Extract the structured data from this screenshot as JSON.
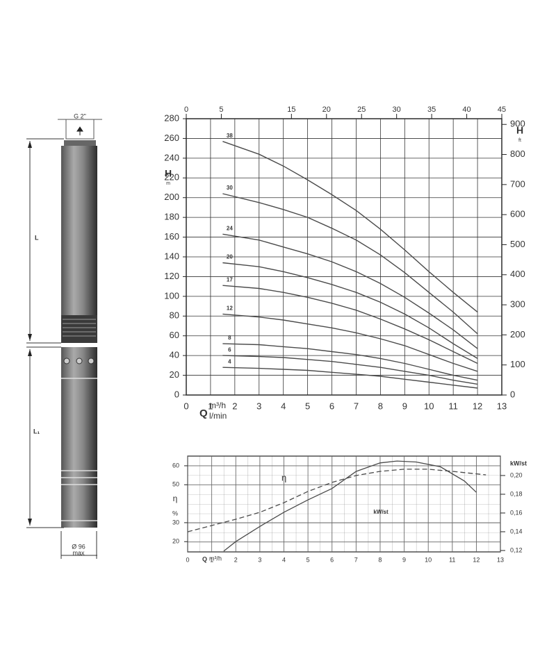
{
  "drawing": {
    "connection": "G 2\"",
    "length_upper": "L",
    "length_lower": "L₁",
    "diameter": "Ø 96",
    "diameter_note": "max"
  },
  "chart_data": [
    {
      "type": "line",
      "x_label": "Q",
      "x_unit": "m³/h",
      "x2_unit": "l/min",
      "y_label": "H",
      "y_unit": "m",
      "y2_label": "H",
      "y2_unit": "ft",
      "xlim": [
        0,
        13
      ],
      "xticks": [
        0,
        1,
        2,
        3,
        4,
        5,
        6,
        7,
        8,
        9,
        10,
        11,
        12,
        13
      ],
      "x2lim": [
        0,
        45
      ],
      "x2ticks": [
        0,
        5,
        15,
        20,
        25,
        30,
        35,
        40,
        45
      ],
      "ylim": [
        0,
        280
      ],
      "yticks": [
        0,
        20,
        40,
        60,
        80,
        100,
        120,
        140,
        160,
        180,
        200,
        220,
        240,
        260,
        280
      ],
      "y2lim": [
        0,
        919
      ],
      "y2ticks": [
        0,
        100,
        200,
        300,
        400,
        500,
        600,
        700,
        800,
        900
      ],
      "grid": true,
      "series": [
        {
          "name": "38",
          "color": "#4a4a4a",
          "x": [
            1.5,
            3,
            4,
            5,
            6,
            7,
            8,
            9,
            10,
            11,
            12
          ],
          "values": [
            257,
            244,
            232,
            218,
            203,
            187,
            168,
            147,
            125,
            104,
            84
          ]
        },
        {
          "name": "30",
          "color": "#4a4a4a",
          "x": [
            1.5,
            3,
            4,
            5,
            6,
            7,
            8,
            9,
            10,
            11,
            12
          ],
          "values": [
            204,
            195,
            188,
            180,
            169,
            157,
            142,
            124,
            104,
            84,
            62
          ]
        },
        {
          "name": "24",
          "color": "#4a4a4a",
          "x": [
            1.5,
            3,
            4,
            5,
            6,
            7,
            8,
            9,
            10,
            11,
            12
          ],
          "values": [
            163,
            157,
            150,
            143,
            135,
            125,
            113,
            99,
            83,
            66,
            47
          ]
        },
        {
          "name": "20",
          "color": "#4a4a4a",
          "x": [
            1.5,
            3,
            4,
            5,
            6,
            7,
            8,
            9,
            10,
            11,
            12
          ],
          "values": [
            134,
            130,
            125,
            119,
            112,
            104,
            94,
            82,
            68,
            52,
            37
          ]
        },
        {
          "name": "17",
          "color": "#4a4a4a",
          "x": [
            1.5,
            3,
            4,
            5,
            6,
            7,
            8,
            9,
            10,
            11,
            12
          ],
          "values": [
            111,
            108,
            104,
            99,
            93,
            86,
            77,
            67,
            56,
            44,
            32
          ]
        },
        {
          "name": "12",
          "color": "#4a4a4a",
          "x": [
            1.5,
            3,
            4,
            5,
            6,
            7,
            8,
            9,
            10,
            11,
            12
          ],
          "values": [
            82,
            79,
            76,
            72,
            68,
            63,
            57,
            50,
            41,
            32,
            24
          ]
        },
        {
          "name": "8",
          "color": "#4a4a4a",
          "x": [
            1.5,
            3,
            4,
            5,
            6,
            7,
            8,
            9,
            10,
            11,
            12
          ],
          "values": [
            52,
            51,
            49,
            47,
            44,
            41,
            37,
            32,
            26,
            20,
            15
          ]
        },
        {
          "name": "6",
          "color": "#4a4a4a",
          "x": [
            1.5,
            3,
            4,
            5,
            6,
            7,
            8,
            9,
            10,
            11,
            12
          ],
          "values": [
            40,
            39,
            38,
            36,
            34,
            31,
            28,
            24,
            20,
            15,
            11
          ]
        },
        {
          "name": "4",
          "color": "#4a4a4a",
          "x": [
            1.5,
            3,
            4,
            5,
            6,
            7,
            8,
            9,
            10,
            11,
            12
          ],
          "values": [
            28,
            27,
            26,
            25,
            23,
            21,
            19,
            16,
            13,
            10,
            7
          ]
        }
      ]
    },
    {
      "type": "line",
      "x_label": "Q",
      "x_unit": "m³/h",
      "y_label": "η",
      "y_unit": "%",
      "y2_label": "kW/st",
      "xlim": [
        0,
        13
      ],
      "xticks": [
        0,
        1,
        2,
        3,
        4,
        5,
        6,
        7,
        8,
        9,
        10,
        11,
        12,
        13
      ],
      "ylim": [
        14.6,
        65.1
      ],
      "yticks": [
        20,
        30,
        50,
        60
      ],
      "y2lim": [
        0.1185,
        0.2207
      ],
      "y2ticks": [
        {
          "value": 0.12,
          "label": "0,12"
        },
        {
          "value": 0.14,
          "label": "0,14"
        },
        {
          "value": 0.16,
          "label": "0,16"
        },
        {
          "value": 0.18,
          "label": "0,18"
        },
        {
          "value": 0.2,
          "label": "0,20"
        }
      ],
      "grid": true,
      "series": [
        {
          "name": "η",
          "color": "#4a4a4a",
          "dash": false,
          "x": [
            1.5,
            2,
            3,
            4,
            5,
            6,
            7,
            8,
            8.7,
            9.5,
            10.5,
            11.5,
            12
          ],
          "values": [
            15,
            20,
            28,
            35.5,
            42,
            48,
            57,
            61.5,
            62.5,
            62,
            59.5,
            52,
            46
          ]
        },
        {
          "name": "kW/st",
          "color": "#4a4a4a",
          "dash": true,
          "axis": "y2",
          "x": [
            0,
            2,
            3,
            4,
            5,
            6,
            7,
            8,
            9,
            10,
            11,
            12.4
          ],
          "values": [
            0.14,
            0.1533,
            0.1607,
            0.171,
            0.183,
            0.1926,
            0.2,
            0.2044,
            0.2067,
            0.2067,
            0.2044,
            0.2007
          ]
        }
      ]
    }
  ]
}
